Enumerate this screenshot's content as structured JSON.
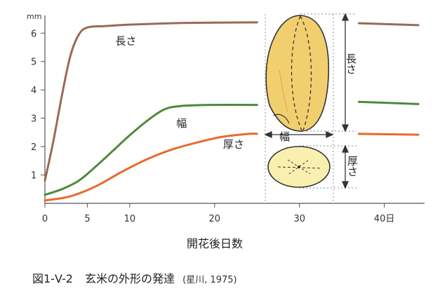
{
  "chart_data": {
    "type": "line",
    "y_unit": "mm",
    "y_ticks": [
      "1",
      "2",
      "3",
      "4",
      "5",
      "6"
    ],
    "x_ticks": [
      "0",
      "5",
      "10",
      "20",
      "30",
      "40日"
    ],
    "x_tick_values": [
      0,
      5,
      10,
      20,
      30,
      40
    ],
    "xlabel": "開花後日数",
    "xlim": [
      0,
      44
    ],
    "ylim": [
      0,
      6.6
    ],
    "grid": false,
    "series": [
      {
        "name": "長さ",
        "color": "#9a6a55",
        "points": [
          [
            0,
            0.8
          ],
          [
            1,
            2.2
          ],
          [
            2,
            3.8
          ],
          [
            3,
            5.2
          ],
          [
            4,
            5.95
          ],
          [
            5,
            6.2
          ],
          [
            7,
            6.25
          ],
          [
            10,
            6.3
          ],
          [
            15,
            6.35
          ],
          [
            20,
            6.37
          ],
          [
            25,
            6.38
          ]
        ],
        "tail": [
          [
            37,
            6.35
          ],
          [
            44,
            6.28
          ]
        ]
      },
      {
        "name": "幅",
        "color": "#4e8a3a",
        "points": [
          [
            0,
            0.3
          ],
          [
            2,
            0.5
          ],
          [
            4,
            0.8
          ],
          [
            6,
            1.3
          ],
          [
            8,
            1.85
          ],
          [
            10,
            2.4
          ],
          [
            12,
            2.9
          ],
          [
            14,
            3.3
          ],
          [
            16,
            3.43
          ],
          [
            20,
            3.47
          ],
          [
            25,
            3.47
          ]
        ],
        "tail": [
          [
            37,
            3.58
          ],
          [
            44,
            3.5
          ]
        ]
      },
      {
        "name": "厚さ",
        "color": "#e86a2e",
        "points": [
          [
            0,
            0.1
          ],
          [
            3,
            0.25
          ],
          [
            6,
            0.6
          ],
          [
            9,
            1.1
          ],
          [
            12,
            1.55
          ],
          [
            15,
            1.9
          ],
          [
            18,
            2.15
          ],
          [
            21,
            2.35
          ],
          [
            24,
            2.45
          ],
          [
            25,
            2.45
          ]
        ],
        "tail": [
          [
            37,
            2.45
          ],
          [
            44,
            2.42
          ]
        ]
      }
    ],
    "inset_labels": {
      "length": "長さ",
      "width": "幅",
      "thickness": "厚さ"
    }
  },
  "caption": {
    "label": "図1-V-2",
    "title": "玄米の外形の発達",
    "source": "(星川,  1975)"
  }
}
